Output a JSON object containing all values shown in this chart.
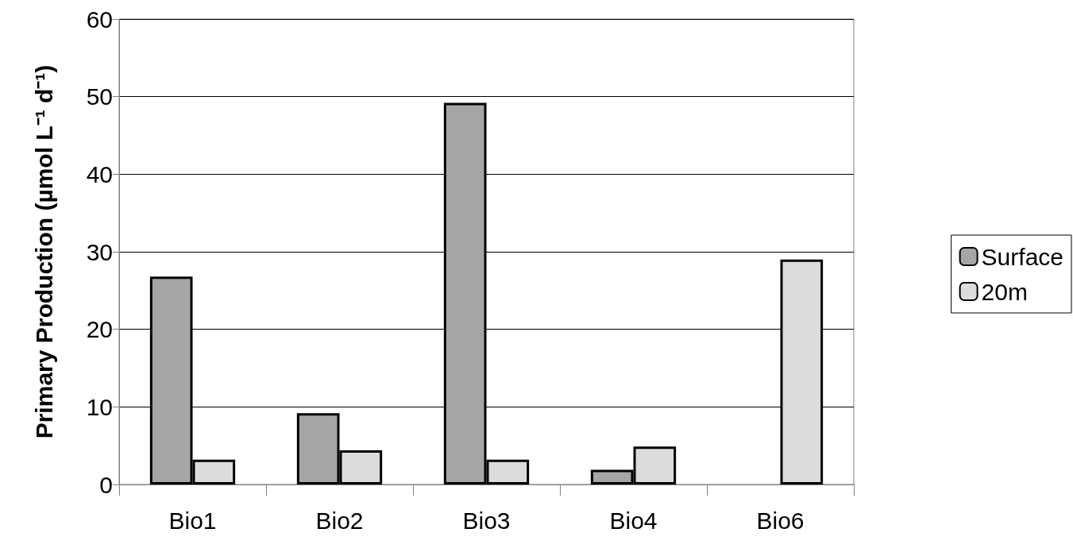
{
  "chart_data": {
    "type": "bar",
    "ylabel": "Primary Production (µmol L⁻¹ d⁻¹)",
    "categories": [
      "Bio1",
      "Bio2",
      "Bio3",
      "Bio4",
      "Bio6"
    ],
    "series": [
      {
        "name": "Surface",
        "color": "#a6a6a6",
        "values": [
          26.8,
          9.2,
          49.2,
          1.9,
          null
        ]
      },
      {
        "name": "20m",
        "color": "#dcdcdc",
        "values": [
          3.2,
          4.4,
          3.2,
          4.9,
          29.0
        ]
      }
    ],
    "ylim": [
      0,
      60
    ],
    "yticks": [
      0,
      10,
      20,
      30,
      40,
      50,
      60
    ],
    "grid": "y",
    "legend": "right"
  }
}
